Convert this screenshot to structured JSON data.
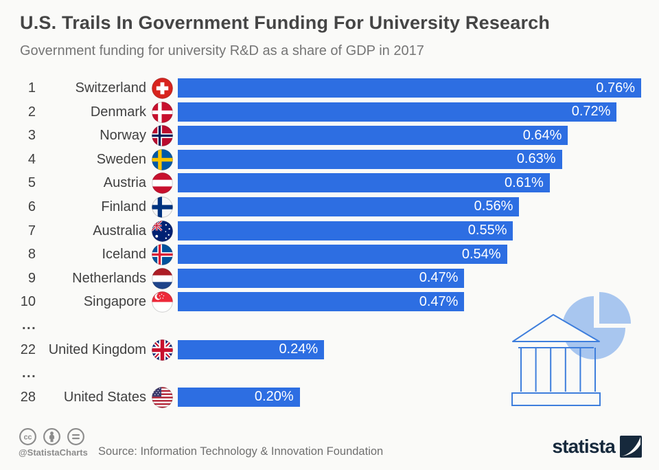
{
  "header": {
    "title": "U.S. Trails In Government Funding For University Research",
    "subtitle": "Government funding for university R&D as a share of GDP in 2017"
  },
  "chart_data": {
    "type": "bar",
    "orientation": "horizontal",
    "title": "U.S. Trails In Government Funding For University Research",
    "subtitle": "Government funding for university R&D as a share of GDP in 2017",
    "xlim": [
      0,
      0.76
    ],
    "value_unit": "% of GDP",
    "grid": false,
    "legend": false,
    "rows": [
      {
        "type": "country",
        "rank": "1",
        "category": "Switzerland",
        "flag": "switzerland",
        "value": 0.76,
        "value_label": "0.76%"
      },
      {
        "type": "country",
        "rank": "2",
        "category": "Denmark",
        "flag": "denmark",
        "value": 0.72,
        "value_label": "0.72%"
      },
      {
        "type": "country",
        "rank": "3",
        "category": "Norway",
        "flag": "norway",
        "value": 0.64,
        "value_label": "0.64%"
      },
      {
        "type": "country",
        "rank": "4",
        "category": "Sweden",
        "flag": "sweden",
        "value": 0.63,
        "value_label": "0.63%"
      },
      {
        "type": "country",
        "rank": "5",
        "category": "Austria",
        "flag": "austria",
        "value": 0.61,
        "value_label": "0.61%"
      },
      {
        "type": "country",
        "rank": "6",
        "category": "Finland",
        "flag": "finland",
        "value": 0.56,
        "value_label": "0.56%"
      },
      {
        "type": "country",
        "rank": "7",
        "category": "Australia",
        "flag": "australia",
        "value": 0.55,
        "value_label": "0.55%"
      },
      {
        "type": "country",
        "rank": "8",
        "category": "Iceland",
        "flag": "iceland",
        "value": 0.54,
        "value_label": "0.54%"
      },
      {
        "type": "country",
        "rank": "9",
        "category": "Netherlands",
        "flag": "netherlands",
        "value": 0.47,
        "value_label": "0.47%"
      },
      {
        "type": "country",
        "rank": "10",
        "category": "Singapore",
        "flag": "singapore",
        "value": 0.47,
        "value_label": "0.47%"
      },
      {
        "type": "ellipsis",
        "label": "..."
      },
      {
        "type": "country",
        "rank": "22",
        "category": "United Kingdom",
        "flag": "united-kingdom",
        "value": 0.24,
        "value_label": "0.24%"
      },
      {
        "type": "ellipsis",
        "label": "..."
      },
      {
        "type": "country",
        "rank": "28",
        "category": "United States",
        "flag": "united-states",
        "value": 0.2,
        "value_label": "0.20%"
      }
    ]
  },
  "decoration": "university-building-with-pie-chart",
  "footer": {
    "license_icons": [
      "cc-icon",
      "attribution-icon",
      "no-derivatives-icon"
    ],
    "handle": "@StatistaCharts",
    "source": "Source: Information Technology & Innovation Foundation",
    "brand": "statista"
  },
  "colors": {
    "background": "#fafaf8",
    "bar": "#2d6ee2",
    "bar_value_text": "#ffffff",
    "title_text": "#454545",
    "subtitle_text": "#757575",
    "row_text": "#404040",
    "footer_text": "#6f6f6f",
    "handle_text": "#8c8c8c",
    "brand_navy": "#16293c",
    "decoration_outline": "#3e7edc",
    "decoration_fill": "#a8c6ef"
  }
}
